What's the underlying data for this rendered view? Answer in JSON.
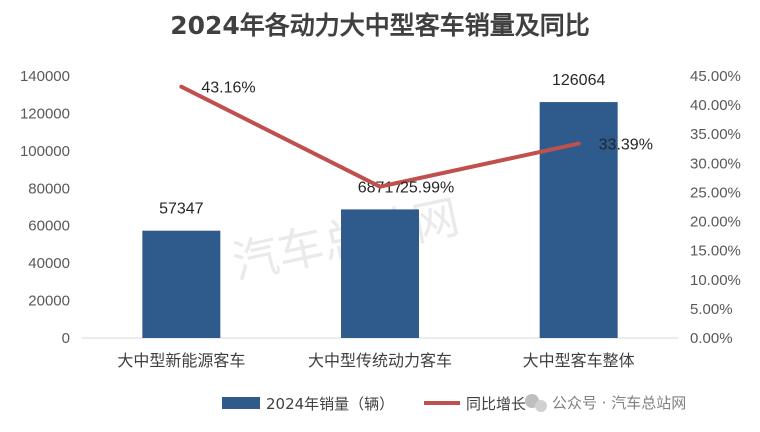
{
  "chart_data": {
    "type": "bar",
    "title": "2024年各动力大中型客车销量及同比",
    "categories": [
      "大中型新能源客车",
      "大中型传统动力客车",
      "大中型客车整体"
    ],
    "series": [
      {
        "name": "2024年销量（辆）",
        "type": "bar",
        "axis": "left",
        "color": "#2E5A8C",
        "values": [
          57347,
          68717,
          126064
        ],
        "labels": [
          "57347",
          "68717",
          "126064"
        ]
      },
      {
        "name": "同比增长",
        "type": "line",
        "axis": "right",
        "color": "#C0504D",
        "values": [
          43.16,
          25.99,
          33.39
        ],
        "labels": [
          "43.16%",
          "25.99%",
          "33.39%"
        ]
      }
    ],
    "y_left": {
      "ylim": [
        0,
        140000
      ],
      "ticks": [
        "0",
        "20000",
        "40000",
        "60000",
        "80000",
        "100000",
        "120000",
        "140000"
      ]
    },
    "y_right": {
      "ylim": [
        0,
        45
      ],
      "ticks": [
        "0.00%",
        "5.00%",
        "10.00%",
        "15.00%",
        "20.00%",
        "25.00%",
        "30.00%",
        "35.00%",
        "40.00%",
        "45.00%"
      ]
    },
    "grid": false,
    "legend_position": "bottom"
  },
  "watermark": "汽车总站网",
  "credit": {
    "icon": "wechat-icon",
    "text": "公众号 · 汽车总站网"
  }
}
